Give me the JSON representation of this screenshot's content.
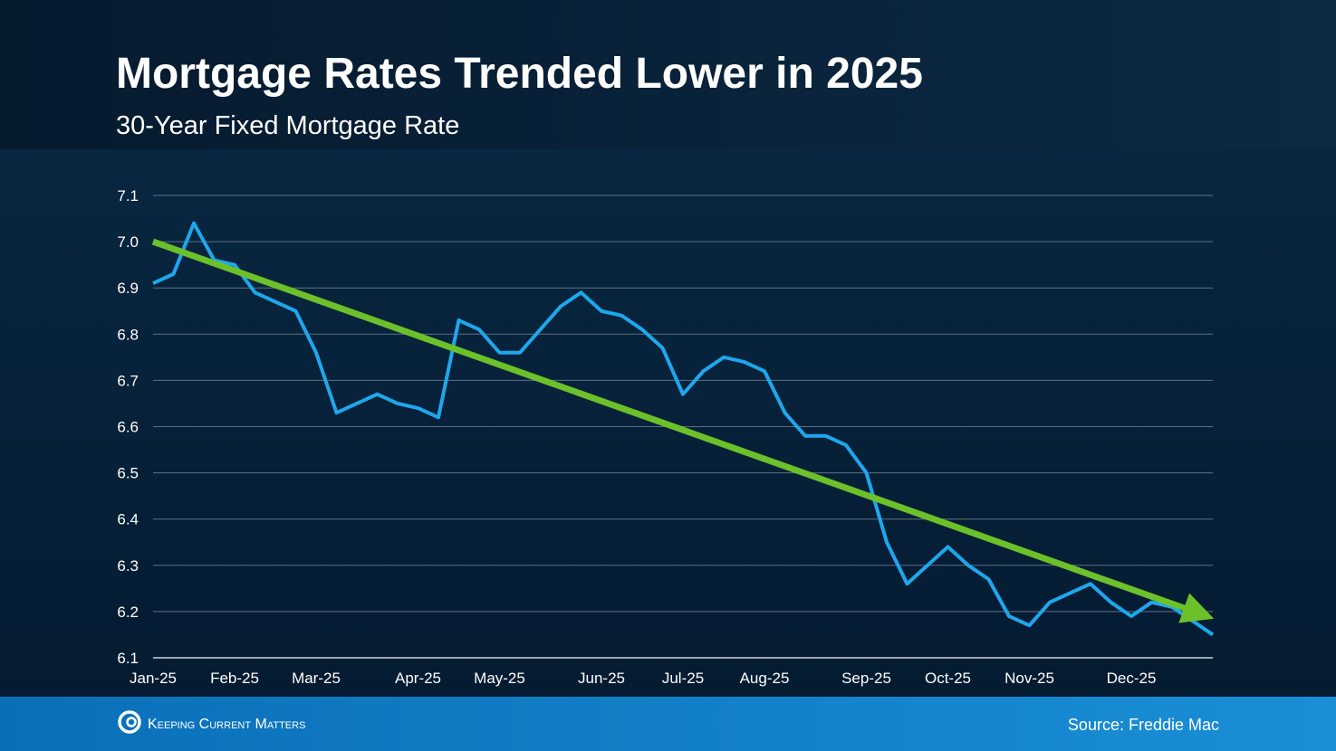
{
  "chart_data": {
    "type": "line",
    "title": "Mortgage Rates Trended Lower in 2025",
    "subtitle": "30-Year Fixed Mortgage Rate",
    "categories": [
      "Jan-25",
      null,
      null,
      null,
      "Feb-25",
      null,
      null,
      null,
      "Mar-25",
      null,
      null,
      null,
      null,
      "Apr-25",
      null,
      null,
      null,
      "May-25",
      null,
      null,
      null,
      null,
      "Jun-25",
      null,
      null,
      null,
      "Jul-25",
      null,
      null,
      null,
      "Aug-25",
      null,
      null,
      null,
      null,
      "Sep-25",
      null,
      null,
      null,
      "Oct-25",
      null,
      null,
      null,
      "Nov-25",
      null,
      null,
      null,
      null,
      "Dec-25",
      null,
      null,
      null,
      null
    ],
    "series": [
      {
        "name": "30-Year Fixed Mortgage Rate",
        "color": "#1ea7ec",
        "values": [
          6.91,
          6.93,
          7.04,
          6.96,
          6.95,
          6.89,
          6.87,
          6.85,
          6.76,
          6.63,
          6.65,
          6.67,
          6.65,
          6.64,
          6.62,
          6.83,
          6.81,
          6.76,
          6.76,
          6.81,
          6.86,
          6.89,
          6.85,
          6.84,
          6.81,
          6.77,
          6.67,
          6.72,
          6.75,
          6.74,
          6.72,
          6.63,
          6.58,
          6.58,
          6.56,
          6.5,
          6.35,
          6.26,
          6.3,
          6.34,
          6.3,
          6.27,
          6.19,
          6.17,
          6.22,
          6.24,
          6.26,
          6.22,
          6.19,
          6.22,
          6.21,
          6.18,
          6.15
        ]
      }
    ],
    "trend": {
      "color": "#6cc12a",
      "values": [
        7.0,
        6.19
      ]
    },
    "ylim": [
      6.1,
      7.1
    ],
    "yticks": [
      6.1,
      6.2,
      6.3,
      6.4,
      6.5,
      6.6,
      6.7,
      6.8,
      6.9,
      {
        "value": 7,
        "label": "7.0"
      },
      7.1
    ],
    "grid": true,
    "logo": "Keeping Current Matters",
    "source": "Source: Freddie Mac"
  }
}
